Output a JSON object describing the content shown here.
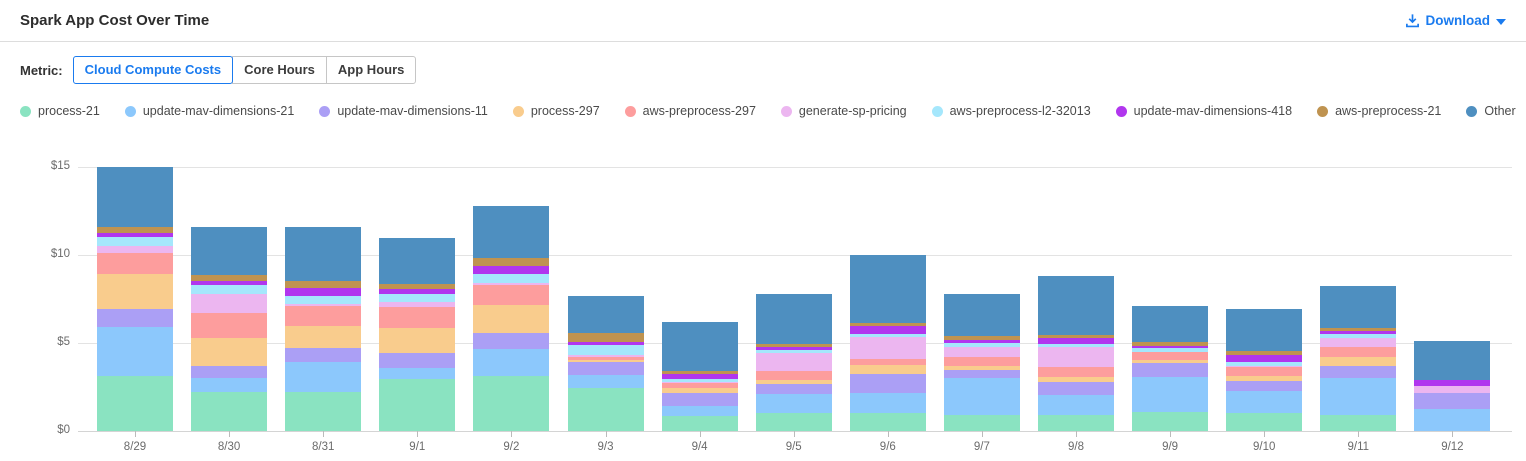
{
  "header": {
    "title": "Spark App Cost Over Time",
    "download_label": "Download"
  },
  "metric": {
    "label": "Metric:",
    "tabs": [
      {
        "label": "Cloud Compute Costs",
        "selected": true
      },
      {
        "label": "Core Hours",
        "selected": false
      },
      {
        "label": "App Hours",
        "selected": false
      }
    ]
  },
  "colors": {
    "accent": "#1A7BEF",
    "gridline": "#E3E3E3",
    "axis_text": "#6B6B6B"
  },
  "chart_data": {
    "type": "bar",
    "stacked": true,
    "title": "Spark App Cost Over Time",
    "xlabel": "",
    "ylabel": "",
    "ylim": [
      0,
      15
    ],
    "grid": true,
    "legend_position": "top",
    "y_ticks": [
      {
        "value": 0,
        "label": "$0"
      },
      {
        "value": 5,
        "label": "$5"
      },
      {
        "value": 10,
        "label": "$10"
      },
      {
        "value": 15,
        "label": "$15"
      }
    ],
    "categories": [
      "8/29",
      "8/30",
      "8/31",
      "9/1",
      "9/2",
      "9/3",
      "9/4",
      "9/5",
      "9/6",
      "9/7",
      "9/8",
      "9/9",
      "9/10",
      "9/11",
      "9/12"
    ],
    "series": [
      {
        "name": "process-21",
        "color": "#8AE3C1",
        "values": [
          3.1,
          2.2,
          2.2,
          2.95,
          3.13,
          2.46,
          0.85,
          1.04,
          1.04,
          0.91,
          0.91,
          1.06,
          1.04,
          0.91,
          0.0
        ]
      },
      {
        "name": "update-mav-dimensions-21",
        "color": "#8CC8FC",
        "values": [
          2.8,
          0.8,
          1.74,
          0.65,
          1.51,
          0.72,
          0.57,
          1.06,
          1.14,
          2.08,
          1.14,
          2.02,
          1.25,
          2.08,
          1.23
        ]
      },
      {
        "name": "update-mav-dimensions-11",
        "color": "#AB9FF5",
        "values": [
          1.05,
          0.72,
          0.8,
          0.85,
          0.95,
          0.72,
          0.72,
          0.57,
          1.04,
          0.48,
          0.75,
          0.77,
          0.57,
          0.7,
          0.91
        ]
      },
      {
        "name": "process-297",
        "color": "#F9CC8D",
        "values": [
          2.0,
          1.56,
          1.24,
          1.42,
          1.57,
          0.13,
          0.29,
          0.21,
          0.51,
          0.22,
          0.29,
          0.18,
          0.27,
          0.5,
          0.0
        ]
      },
      {
        "name": "aws-preprocess-297",
        "color": "#FD9D9D",
        "values": [
          1.15,
          1.42,
          1.1,
          1.16,
          1.14,
          0.16,
          0.28,
          0.55,
          0.34,
          0.53,
          0.53,
          0.48,
          0.49,
          0.56,
          0.0
        ]
      },
      {
        "name": "generate-sp-pricing",
        "color": "#ECB6F0",
        "values": [
          0.4,
          1.1,
          0.15,
          0.32,
          0.1,
          0.13,
          0.1,
          0.98,
          1.29,
          0.57,
          1.13,
          0.0,
          0.08,
          0.52,
          0.42
        ]
      },
      {
        "name": "aws-preprocess-l2-32013",
        "color": "#A5E7FC",
        "values": [
          0.55,
          0.5,
          0.42,
          0.45,
          0.51,
          0.55,
          0.14,
          0.17,
          0.17,
          0.23,
          0.17,
          0.19,
          0.25,
          0.24,
          0.0
        ]
      },
      {
        "name": "update-mav-dimensions-418",
        "color": "#B136EE",
        "values": [
          0.22,
          0.2,
          0.48,
          0.25,
          0.47,
          0.17,
          0.32,
          0.17,
          0.42,
          0.15,
          0.38,
          0.15,
          0.38,
          0.19,
          0.34
        ]
      },
      {
        "name": "aws-preprocess-21",
        "color": "#BF9350",
        "values": [
          0.35,
          0.38,
          0.37,
          0.28,
          0.48,
          0.51,
          0.15,
          0.17,
          0.17,
          0.23,
          0.15,
          0.19,
          0.23,
          0.17,
          0.0
        ]
      },
      {
        "name": "Other",
        "color": "#4E8FC0",
        "values": [
          3.4,
          2.72,
          3.1,
          2.62,
          2.94,
          2.15,
          2.78,
          2.88,
          3.88,
          2.4,
          3.35,
          2.06,
          2.35,
          2.37,
          2.2
        ]
      }
    ]
  }
}
